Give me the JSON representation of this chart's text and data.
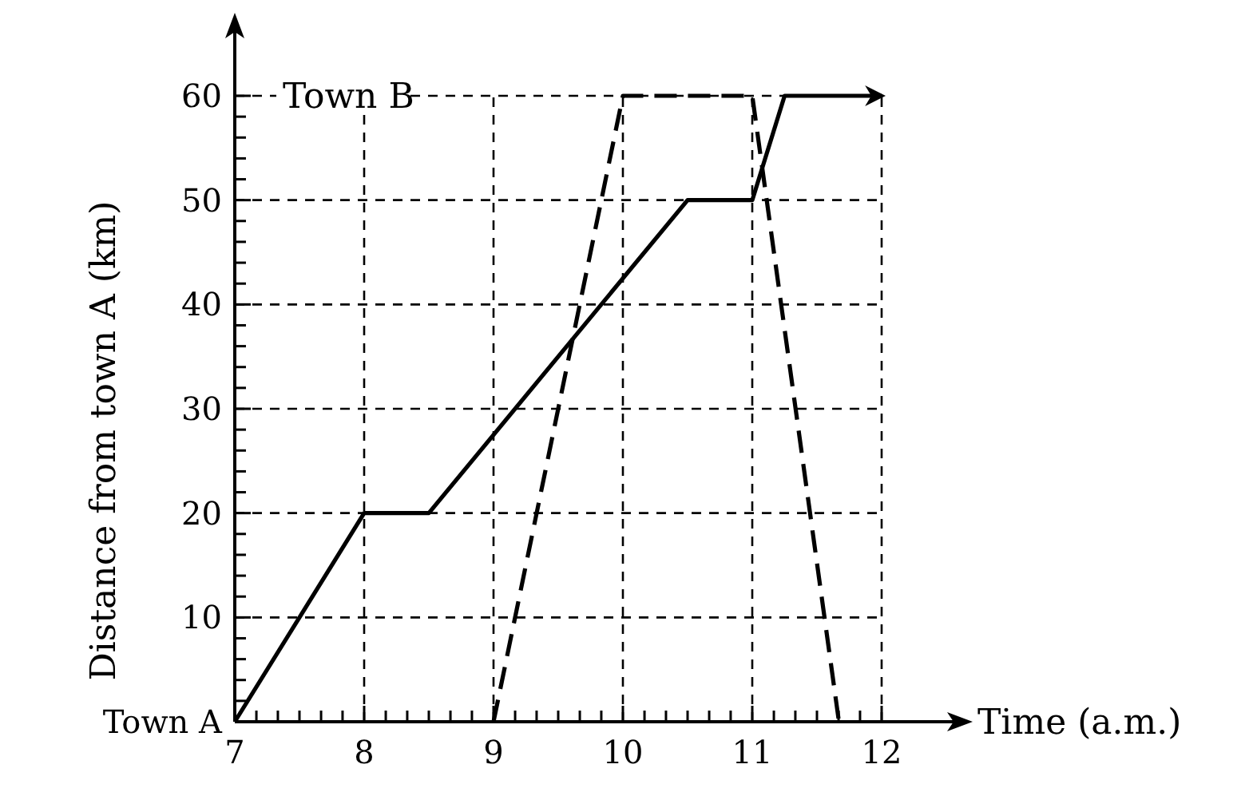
{
  "chart_data": {
    "type": "line",
    "xlabel": "Time (a.m.)",
    "ylabel": "Distance from town A (km)",
    "xlim": [
      7,
      12
    ],
    "ylim": [
      0,
      60
    ],
    "xticks": [
      7,
      {
        "value": 7.167,
        "label": null
      },
      {
        "value": 7.333,
        "label": null
      },
      {
        "value": 7.5,
        "label": null
      },
      {
        "value": 7.667,
        "label": null
      },
      {
        "value": 7.833,
        "label": null
      },
      8,
      {
        "value": 8.167,
        "label": null
      },
      {
        "value": 8.333,
        "label": null
      },
      {
        "value": 8.5,
        "label": null
      },
      {
        "value": 8.667,
        "label": null
      },
      {
        "value": 8.833,
        "label": null
      },
      9,
      {
        "value": 9.167,
        "label": null
      },
      {
        "value": 9.333,
        "label": null
      },
      {
        "value": 9.5,
        "label": null
      },
      {
        "value": 9.667,
        "label": null
      },
      {
        "value": 9.833,
        "label": null
      },
      10,
      {
        "value": 10.167,
        "label": null
      },
      {
        "value": 10.333,
        "label": null
      },
      {
        "value": 10.5,
        "label": null
      },
      {
        "value": 10.667,
        "label": null
      },
      {
        "value": 10.833,
        "label": null
      },
      11,
      {
        "value": 11.167,
        "label": null
      },
      {
        "value": 11.333,
        "label": null
      },
      {
        "value": 11.5,
        "label": null
      },
      {
        "value": 11.667,
        "label": null
      },
      {
        "value": 11.833,
        "label": null
      },
      12
    ],
    "yticks": [
      {
        "value": 0,
        "label": "Town A"
      },
      {
        "value": 2,
        "label": null
      },
      {
        "value": 4,
        "label": null
      },
      {
        "value": 6,
        "label": null
      },
      {
        "value": 8,
        "label": null
      },
      10,
      {
        "value": 12,
        "label": null
      },
      {
        "value": 14,
        "label": null
      },
      {
        "value": 16,
        "label": null
      },
      {
        "value": 18,
        "label": null
      },
      20,
      {
        "value": 22,
        "label": null
      },
      {
        "value": 24,
        "label": null
      },
      {
        "value": 26,
        "label": null
      },
      {
        "value": 28,
        "label": null
      },
      30,
      {
        "value": 32,
        "label": null
      },
      {
        "value": 34,
        "label": null
      },
      {
        "value": 36,
        "label": null
      },
      {
        "value": 38,
        "label": null
      },
      40,
      {
        "value": 42,
        "label": null
      },
      {
        "value": 44,
        "label": null
      },
      {
        "value": 46,
        "label": null
      },
      {
        "value": 48,
        "label": null
      },
      50,
      {
        "value": 52,
        "label": null
      },
      {
        "value": 54,
        "label": null
      },
      {
        "value": 56,
        "label": null
      },
      {
        "value": 58,
        "label": null
      },
      60
    ],
    "grid": true,
    "marker": "none",
    "annotations": [
      "Town B"
    ],
    "series": [
      {
        "color": "#000000",
        "line_style": "solid",
        "x": [
          7,
          8,
          8.5,
          10.5,
          11,
          11.25,
          12
        ],
        "values": [
          0,
          20,
          20,
          50,
          50,
          60,
          60
        ]
      },
      {
        "color": "#000000",
        "line_style": "dashed",
        "x": [
          9,
          10,
          11,
          11.67
        ],
        "values": [
          0,
          60,
          60,
          0
        ]
      }
    ]
  }
}
